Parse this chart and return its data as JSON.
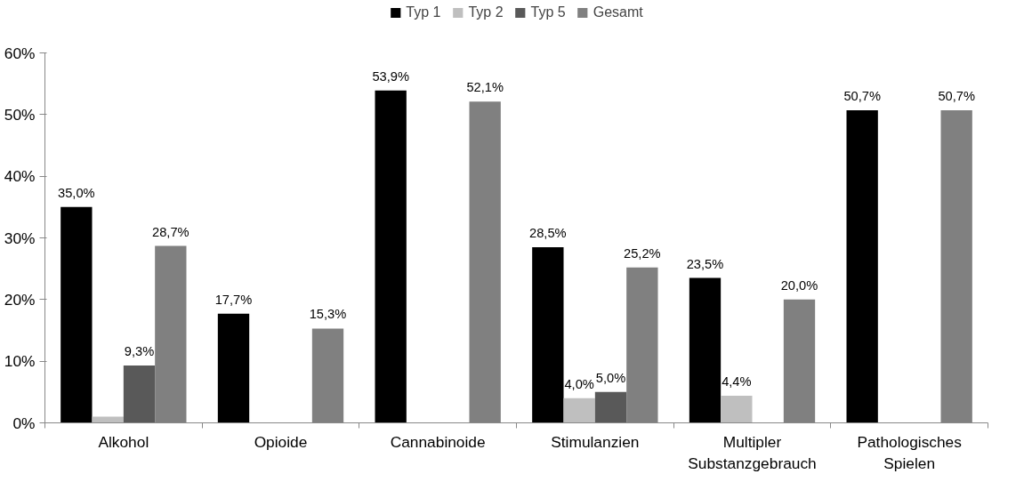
{
  "chart_data": {
    "type": "bar",
    "categories": [
      "Alkohol",
      "Opioide",
      "Cannabinoide",
      "Stimulanzien",
      "Multipler\nSubstanzgebrauch",
      "Pathologisches\nSpielen"
    ],
    "series": [
      {
        "name": "Typ 1",
        "color": "#000000",
        "values": [
          35.0,
          17.7,
          53.9,
          28.5,
          23.5,
          50.7
        ],
        "value_labels": [
          "35,0%",
          "17,7%",
          "53,9%",
          "28,5%",
          "23,5%",
          "50,7%"
        ]
      },
      {
        "name": "Typ 2",
        "color": "#bfbfbf",
        "values": [
          1.0,
          null,
          null,
          4.0,
          4.4,
          null
        ],
        "value_labels": [
          null,
          null,
          null,
          "4,0%",
          "4,4%",
          null
        ]
      },
      {
        "name": "Typ 5",
        "color": "#595959",
        "values": [
          9.3,
          null,
          null,
          5.0,
          null,
          null
        ],
        "value_labels": [
          "9,3%",
          null,
          null,
          "5,0%",
          null,
          null
        ]
      },
      {
        "name": "Gesamt",
        "color": "#808080",
        "values": [
          28.7,
          15.3,
          52.1,
          25.2,
          20.0,
          50.7
        ],
        "value_labels": [
          "28,7%",
          "15,3%",
          "52,1%",
          "25,2%",
          "20,0%",
          "50,7%"
        ]
      }
    ],
    "ylim": [
      0,
      60
    ],
    "yticks": [
      {
        "value": 0,
        "label": "0%"
      },
      {
        "value": 10,
        "label": "10%"
      },
      {
        "value": 20,
        "label": "20%"
      },
      {
        "value": 30,
        "label": "30%"
      },
      {
        "value": 40,
        "label": "40%"
      },
      {
        "value": 50,
        "label": "50%"
      },
      {
        "value": 60,
        "label": "60%"
      }
    ],
    "grid": false,
    "legend": "top"
  }
}
